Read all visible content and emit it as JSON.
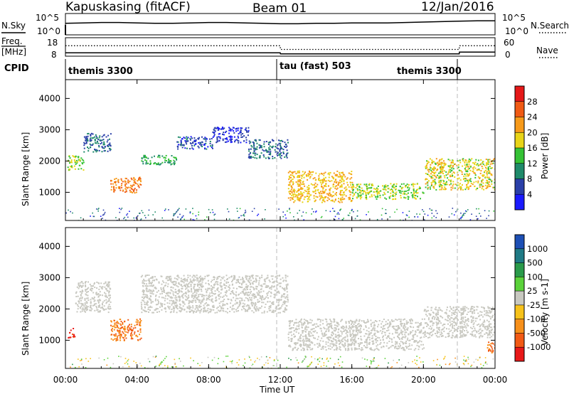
{
  "header": {
    "station": "Kapuskasing (fitACF)",
    "beam": "Beam 01",
    "date": "12/Jan/2016"
  },
  "noise_panel": {
    "left_label": "N.Sky",
    "right_label": "N.Search",
    "left_ticks": [
      "10^5",
      "10^0"
    ],
    "right_ticks": [
      "10^5",
      "10^0"
    ]
  },
  "freq_panel": {
    "left_label_1": "Freq.",
    "left_label_2": "[MHz]",
    "right_label": "Nave",
    "left_ticks": [
      "18",
      "8"
    ],
    "right_ticks": [
      "60",
      "0"
    ]
  },
  "cpid": {
    "label": "CPID",
    "segments": [
      "themis 3300",
      "tau (fast) 503",
      "themis 3300"
    ]
  },
  "power_panel": {
    "ylabel": "Slant Range [km]",
    "yticks": [
      "4000",
      "3000",
      "2000",
      "1000"
    ],
    "colorbar_label": "Power [dB]",
    "colorbar_ticks": [
      "28",
      "24",
      "20",
      "16",
      "12",
      "8",
      "4"
    ],
    "colorbar_colors": [
      "#e51818",
      "#f05a14",
      "#f79a1a",
      "#e8d418",
      "#35c235",
      "#1f8a6a",
      "#2a3fa8",
      "#1a1aff"
    ]
  },
  "velocity_panel": {
    "ylabel": "Slant Range [km]",
    "yticks": [
      "4000",
      "3000",
      "2000",
      "1000"
    ],
    "colorbar_label": "Velocity [m s-1]",
    "colorbar_ticks": [
      "1000",
      "500",
      "100",
      "25",
      "-25",
      "-100",
      "-500",
      "-1000"
    ],
    "colorbar_colors": [
      "#1d4fb5",
      "#1f7a85",
      "#2a9a4a",
      "#5bd23a",
      "#c8c8c0",
      "#f7c21a",
      "#f7901a",
      "#f25a14",
      "#e81818"
    ]
  },
  "xaxis": {
    "ticks": [
      "00:00",
      "04:00",
      "08:00",
      "12:00",
      "16:00",
      "20:00",
      "00:00"
    ],
    "label": "Time UT"
  },
  "chart_data": [
    {
      "type": "line",
      "title": "N.Sky",
      "x": [
        0,
        1,
        2,
        3,
        4,
        5,
        6,
        7,
        8,
        9,
        10,
        11,
        12,
        13,
        14,
        15,
        16,
        17,
        18,
        19,
        20,
        21,
        22,
        23,
        24
      ],
      "series": [
        {
          "values": [
            2.7,
            2.8,
            2.9,
            2.9,
            2.8,
            2.7,
            2.7,
            2.8,
            2.9,
            2.9,
            2.8,
            2.7,
            2.6,
            2.6,
            2.7,
            2.7,
            2.8,
            2.8,
            2.8,
            2.9,
            3.0,
            3.1,
            3.2,
            3.3,
            3.3
          ]
        }
      ],
      "ylim": [
        0,
        5
      ]
    },
    {
      "type": "line",
      "title": "Freq. [MHz]",
      "x": [
        0,
        12,
        12.01,
        22,
        22.01,
        24
      ],
      "series": [
        {
          "name": "Freq.",
          "values": [
            10.2,
            10.2,
            9.6,
            9.6,
            10.6,
            10.6
          ]
        },
        {
          "name": "Nave",
          "values": [
            34,
            34,
            22,
            22,
            34,
            34
          ]
        }
      ]
    },
    {
      "type": "heatmap",
      "title": "Power [dB]",
      "x_range": [
        0,
        24
      ],
      "y_range": [
        100,
        4600
      ],
      "regions": [
        {
          "t0": 0.1,
          "t1": 1.0,
          "r0": 1700,
          "r1": 2200,
          "v": 18
        },
        {
          "t0": 1.0,
          "t1": 2.5,
          "r0": 2300,
          "r1": 2900,
          "v": 10
        },
        {
          "t0": 2.5,
          "t1": 4.2,
          "r0": 1000,
          "r1": 1500,
          "v": 26
        },
        {
          "t0": 4.2,
          "t1": 6.2,
          "r0": 1900,
          "r1": 2200,
          "v": 14
        },
        {
          "t0": 6.2,
          "t1": 8.2,
          "r0": 2400,
          "r1": 2800,
          "v": 8
        },
        {
          "t0": 8.2,
          "t1": 10.2,
          "r0": 2600,
          "r1": 3100,
          "v": 6
        },
        {
          "t0": 10.2,
          "t1": 12.4,
          "r0": 2100,
          "r1": 2700,
          "v": 10
        },
        {
          "t0": 12.4,
          "t1": 16.0,
          "r0": 700,
          "r1": 1700,
          "v": 22
        },
        {
          "t0": 16.0,
          "t1": 20.0,
          "r0": 800,
          "r1": 1300,
          "v": 18
        },
        {
          "t0": 20.0,
          "t1": 24.0,
          "r0": 1100,
          "r1": 2100,
          "v": 20
        }
      ]
    },
    {
      "type": "heatmap",
      "title": "Velocity [m s-1]",
      "x_range": [
        0,
        24
      ],
      "y_range": [
        100,
        4600
      ],
      "regions": [
        {
          "t0": 0.1,
          "t1": 0.5,
          "r0": 1100,
          "r1": 1400,
          "v": -1000
        },
        {
          "t0": 0.5,
          "t1": 2.5,
          "r0": 1900,
          "r1": 2900,
          "v": 0
        },
        {
          "t0": 2.5,
          "t1": 4.2,
          "r0": 1000,
          "r1": 1700,
          "v": -500
        },
        {
          "t0": 4.2,
          "t1": 12.4,
          "r0": 1900,
          "r1": 3100,
          "v": 0
        },
        {
          "t0": 12.4,
          "t1": 20.0,
          "r0": 700,
          "r1": 1700,
          "v": 0
        },
        {
          "t0": 20.0,
          "t1": 24.0,
          "r0": 1100,
          "r1": 2100,
          "v": 0
        },
        {
          "t0": 23.5,
          "t1": 24.0,
          "r0": 600,
          "r1": 1000,
          "v": -500
        }
      ]
    }
  ]
}
